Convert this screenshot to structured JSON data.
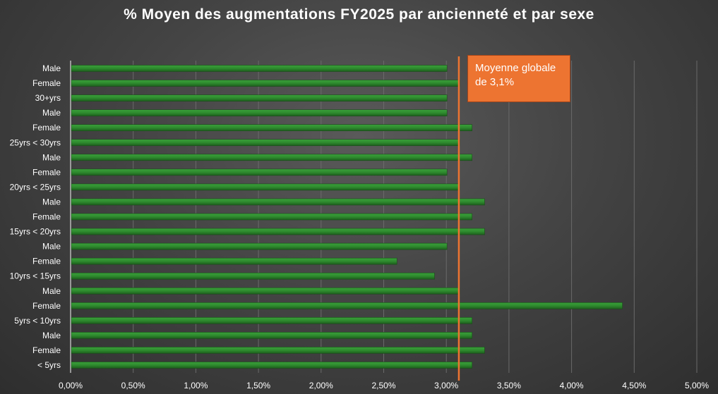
{
  "title": "% Moyen des augmentations FY2025 par ancienneté et par sexe",
  "annotation": "Moyenne globale de 3,1%",
  "colors": {
    "bar": "#2e8b2e",
    "bar_dark": "#1d5e1d",
    "reference_line": "#ed7431",
    "callout": "#ed7431"
  },
  "chart_data": {
    "type": "bar",
    "orientation": "horizontal",
    "title": "% Moyen des augmentations FY2025 par ancienneté et par sexe",
    "categories": [
      "Male",
      "Female",
      "30+yrs",
      "Male",
      "Female",
      "25yrs < 30yrs",
      "Male",
      "Female",
      "20yrs < 25yrs",
      "Male",
      "Female",
      "15yrs < 20yrs",
      "Male",
      "Female",
      "10yrs < 15yrs",
      "Male",
      "Female",
      "5yrs < 10yrs",
      "Male",
      "Female",
      "< 5yrs"
    ],
    "values": [
      0.03,
      0.031,
      0.03,
      0.03,
      0.032,
      0.031,
      0.032,
      0.03,
      0.031,
      0.033,
      0.032,
      0.033,
      0.03,
      0.026,
      0.029,
      0.031,
      0.044,
      0.032,
      0.032,
      0.033,
      0.032
    ],
    "xlim": [
      0,
      0.05
    ],
    "x_ticks": [
      0,
      0.005,
      0.01,
      0.015,
      0.02,
      0.025,
      0.03,
      0.035,
      0.04,
      0.045,
      0.05
    ],
    "x_tick_labels": [
      "0,00%",
      "0,50%",
      "1,00%",
      "1,50%",
      "2,00%",
      "2,50%",
      "3,00%",
      "3,50%",
      "4,00%",
      "4,50%",
      "5,00%"
    ],
    "reference_line": {
      "value": 0.031,
      "label": "Moyenne globale de 3,1%"
    },
    "grid": true,
    "legend": "none"
  }
}
